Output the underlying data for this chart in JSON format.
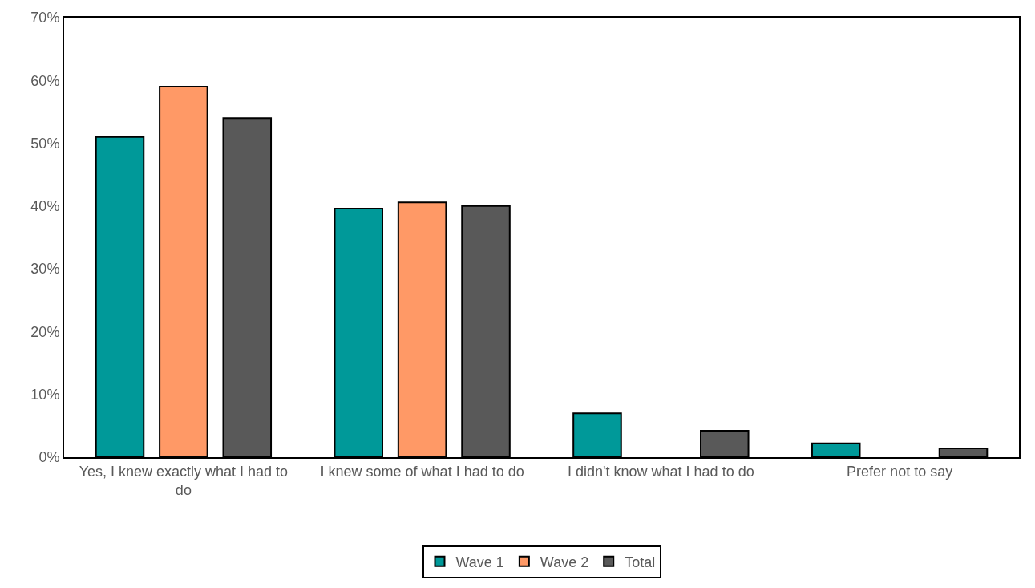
{
  "chart_data": {
    "type": "bar",
    "categories": [
      "Yes, I knew exactly what I had to do",
      "I knew some of what I had to do",
      "I didn't know what I had to do",
      "Prefer not to say"
    ],
    "series": [
      {
        "name": "Wave 1",
        "color": "#009999",
        "values": [
          51,
          39.6,
          7,
          2.2
        ]
      },
      {
        "name": "Wave 2",
        "color": "#ff9966",
        "values": [
          59,
          40.6,
          null,
          null
        ]
      },
      {
        "name": "Total",
        "color": "#595959",
        "values": [
          54,
          40,
          4.2,
          1.4
        ]
      }
    ],
    "ylim": [
      0,
      70
    ],
    "yticks": [
      {
        "value": 0,
        "label": "0%"
      },
      {
        "value": 10,
        "label": "10%"
      },
      {
        "value": 20,
        "label": "20%"
      },
      {
        "value": 30,
        "label": "30%"
      },
      {
        "value": 40,
        "label": "40%"
      },
      {
        "value": 50,
        "label": "50%"
      },
      {
        "value": 60,
        "label": "60%"
      },
      {
        "value": 70,
        "label": "70%"
      }
    ],
    "legend": "bottom"
  }
}
